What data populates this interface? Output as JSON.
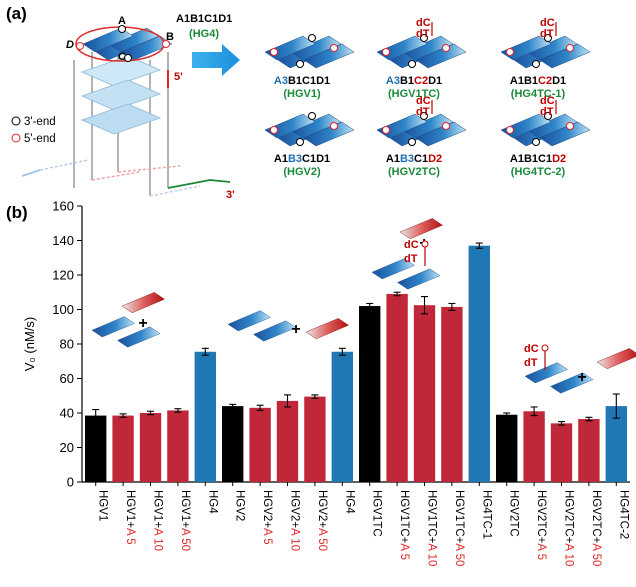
{
  "panel_a": {
    "label": "(a)",
    "helix_letters": [
      "A",
      "B",
      "C",
      "D"
    ],
    "five_prime_tag": "5'",
    "three_prime_tag": "3'",
    "legend_3": "3'-end",
    "legend_5": "5'-end",
    "hg4_code": [
      {
        "t": "A1",
        "c": "#000000"
      },
      {
        "t": "B1",
        "c": "#000000"
      },
      {
        "t": "C1",
        "c": "#000000"
      },
      {
        "t": "D1",
        "c": "#000000"
      }
    ],
    "hg4_name": "HG4",
    "dc_label": "dC",
    "dt_label": "dT",
    "variants": [
      {
        "code": [
          {
            "t": "A3",
            "c": "#1f6fb3"
          },
          {
            "t": "B1",
            "c": "#000000"
          },
          {
            "t": "C1",
            "c": "#000000"
          },
          {
            "t": "D1",
            "c": "#000000"
          }
        ],
        "name": "HGV1"
      },
      {
        "code": [
          {
            "t": "A3",
            "c": "#1f6fb3"
          },
          {
            "t": "B1",
            "c": "#000000"
          },
          {
            "t": "C2",
            "c": "#c00000"
          },
          {
            "t": "D1",
            "c": "#000000"
          }
        ],
        "name": "HGV1TC"
      },
      {
        "code": [
          {
            "t": "A1",
            "c": "#000000"
          },
          {
            "t": "B1",
            "c": "#000000"
          },
          {
            "t": "C2",
            "c": "#c00000"
          },
          {
            "t": "D1",
            "c": "#000000"
          }
        ],
        "name": "HG4TC-1"
      },
      {
        "code": [
          {
            "t": "A1",
            "c": "#000000"
          },
          {
            "t": "B3",
            "c": "#1f6fb3"
          },
          {
            "t": "C1",
            "c": "#000000"
          },
          {
            "t": "D1",
            "c": "#000000"
          }
        ],
        "name": "HGV2"
      },
      {
        "code": [
          {
            "t": "A1",
            "c": "#000000"
          },
          {
            "t": "B3",
            "c": "#1f6fb3"
          },
          {
            "t": "C1",
            "c": "#000000"
          },
          {
            "t": "D2",
            "c": "#c00000"
          }
        ],
        "name": "HGV2TC"
      },
      {
        "code": [
          {
            "t": "A1",
            "c": "#000000"
          },
          {
            "t": "B1",
            "c": "#000000"
          },
          {
            "t": "C1",
            "c": "#000000"
          },
          {
            "t": "D2",
            "c": "#c00000"
          }
        ],
        "name": "HG4TC-2"
      }
    ]
  },
  "panel_b": {
    "label": "(b)",
    "plus_sign": "+",
    "dc_label": "dC",
    "dt_label": "dT"
  },
  "chart_data": {
    "type": "bar",
    "ylabel": "V₀ (nM/s)",
    "ylim": [
      0,
      160
    ],
    "yticks": [
      0,
      20,
      40,
      60,
      80,
      100,
      120,
      140,
      160
    ],
    "categories": [
      {
        "base": "HGV1",
        "suffix": ""
      },
      {
        "base": "HGV1+",
        "suffix": "A 5"
      },
      {
        "base": "HGV1+",
        "suffix": "A 10"
      },
      {
        "base": "HGV1+",
        "suffix": "A 50"
      },
      {
        "base": "HG4",
        "suffix": ""
      },
      {
        "base": "HGV2",
        "suffix": ""
      },
      {
        "base": "HGV2+",
        "suffix": "A 5"
      },
      {
        "base": "HGV2+",
        "suffix": "A 10"
      },
      {
        "base": "HGV2+",
        "suffix": "A 50"
      },
      {
        "base": "HG4",
        "suffix": ""
      },
      {
        "base": "HGV1TC",
        "suffix": ""
      },
      {
        "base": "HGV1TC+",
        "suffix": "A 5"
      },
      {
        "base": "HGV1TC+",
        "suffix": "A 10"
      },
      {
        "base": "HGV1TC+",
        "suffix": "A 50"
      },
      {
        "base": "HG4TC-1",
        "suffix": ""
      },
      {
        "base": "HGV2TC",
        "suffix": ""
      },
      {
        "base": "HGV2TC+",
        "suffix": "A 5"
      },
      {
        "base": "HGV2TC+",
        "suffix": "A 10"
      },
      {
        "base": "HGV2TC+",
        "suffix": "A 50"
      },
      {
        "base": "HG4TC-2",
        "suffix": ""
      }
    ],
    "values": [
      38.5,
      38.5,
      40,
      41.5,
      75.5,
      44,
      43,
      47,
      49.5,
      75.5,
      102,
      109,
      102.5,
      101.5,
      137,
      39,
      41,
      34,
      36.5,
      44
    ],
    "errors": [
      3.5,
      1,
      1,
      1,
      2,
      1,
      1.5,
      3.5,
      1,
      2,
      1.5,
      1,
      5,
      2,
      1.5,
      1,
      2.5,
      1,
      1,
      7
    ],
    "bar_colors": [
      "#000000",
      "#c0283a",
      "#c0283a",
      "#c0283a",
      "#1f77b4",
      "#000000",
      "#c0283a",
      "#c0283a",
      "#c0283a",
      "#1f77b4",
      "#000000",
      "#c0283a",
      "#c0283a",
      "#c0283a",
      "#1f77b4",
      "#000000",
      "#c0283a",
      "#c0283a",
      "#c0283a",
      "#1f77b4"
    ],
    "suffix_color": "#e0282a",
    "grid": false
  }
}
